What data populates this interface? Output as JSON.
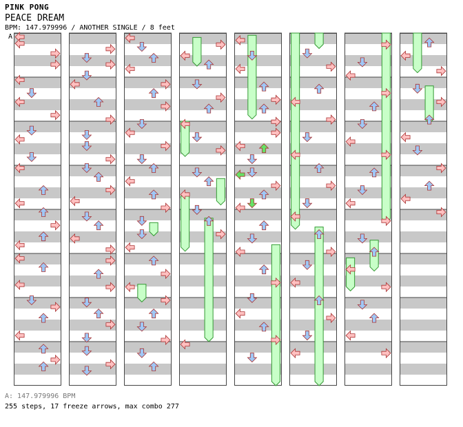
{
  "header": {
    "title": "PINK PONG",
    "song": "PEACE DREAM",
    "info": "BPM: 147.979996 / ANOTHER SINGLE / 8 feet",
    "section_marker": "A"
  },
  "footer": {
    "bpm_line": "A: 147.979996 BPM",
    "stats_line": "255 steps, 17 freeze arrows, max combo 277"
  },
  "colors": {
    "stripe": "#c8c8c8",
    "column_border": "#444444",
    "left_right_arrow": "#ffc0c0",
    "down_up_arrow": "#9fc7f5",
    "note_green": "#66e066",
    "freeze": "#c8ffc8",
    "freeze_border": "#339933"
  },
  "chart": {
    "columns": 8,
    "measures_per_column": 8,
    "notes": [
      [
        0,
        0.05,
        "L"
      ],
      [
        0,
        0.35,
        "L"
      ],
      [
        0,
        0.8,
        "R"
      ],
      [
        0,
        1.3,
        "R"
      ],
      [
        0,
        2.0,
        "L"
      ],
      [
        0,
        2.6,
        "D"
      ],
      [
        0,
        3.0,
        "L"
      ],
      [
        0,
        3.6,
        "R"
      ],
      [
        0,
        4.3,
        "D"
      ],
      [
        0,
        4.7,
        "L"
      ],
      [
        0,
        5.5,
        "D"
      ],
      [
        0,
        6.0,
        "L"
      ],
      [
        0,
        7.0,
        "U"
      ],
      [
        0,
        7.6,
        "L"
      ],
      [
        0,
        8.0,
        "U"
      ],
      [
        0,
        8.6,
        "R"
      ],
      [
        0,
        9.1,
        "U"
      ],
      [
        0,
        9.5,
        "L"
      ],
      [
        0,
        10.1,
        "L"
      ],
      [
        0,
        10.5,
        "U"
      ],
      [
        0,
        11.3,
        "L"
      ],
      [
        0,
        12.0,
        "D"
      ],
      [
        0,
        12.3,
        "R"
      ],
      [
        0,
        12.8,
        "U"
      ],
      [
        0,
        13.6,
        "L"
      ],
      [
        0,
        14.2,
        "U"
      ],
      [
        0,
        14.7,
        "R"
      ],
      [
        0,
        15.0,
        "U"
      ],
      [
        1,
        0.6,
        "R"
      ],
      [
        1,
        1.0,
        "D"
      ],
      [
        1,
        1.3,
        "R"
      ],
      [
        1,
        1.8,
        "D"
      ],
      [
        1,
        2.2,
        "L"
      ],
      [
        1,
        3.0,
        "U"
      ],
      [
        1,
        3.8,
        "R"
      ],
      [
        1,
        4.5,
        "D"
      ],
      [
        1,
        5.0,
        "D"
      ],
      [
        1,
        5.6,
        "R"
      ],
      [
        1,
        6.0,
        "D"
      ],
      [
        1,
        6.4,
        "U"
      ],
      [
        1,
        7.0,
        "R"
      ],
      [
        1,
        7.5,
        "L"
      ],
      [
        1,
        8.2,
        "D"
      ],
      [
        1,
        8.6,
        "U"
      ],
      [
        1,
        9.2,
        "L"
      ],
      [
        1,
        9.7,
        "R"
      ],
      [
        1,
        10.2,
        "R"
      ],
      [
        1,
        10.8,
        "U"
      ],
      [
        1,
        11.4,
        "R"
      ],
      [
        1,
        12.1,
        "D"
      ],
      [
        1,
        12.6,
        "U"
      ],
      [
        1,
        13.1,
        "R"
      ],
      [
        1,
        13.7,
        "D"
      ],
      [
        1,
        14.3,
        "D"
      ],
      [
        1,
        14.9,
        "R"
      ],
      [
        1,
        15.2,
        "D"
      ],
      [
        2,
        0.1,
        "L"
      ],
      [
        2,
        0.5,
        "D"
      ],
      [
        2,
        1.0,
        "U"
      ],
      [
        2,
        1.5,
        "L"
      ],
      [
        2,
        2.2,
        "R"
      ],
      [
        2,
        2.6,
        "U"
      ],
      [
        2,
        3.2,
        "R"
      ],
      [
        2,
        4.0,
        "D"
      ],
      [
        2,
        4.4,
        "L"
      ],
      [
        2,
        5.0,
        "R"
      ],
      [
        2,
        5.6,
        "D"
      ],
      [
        2,
        6.0,
        "U"
      ],
      [
        2,
        6.6,
        "L"
      ],
      [
        2,
        7.2,
        "U"
      ],
      [
        2,
        7.8,
        "R"
      ],
      [
        2,
        8.4,
        "D"
      ],
      [
        2,
        9.0,
        "D"
      ],
      [
        2,
        9.6,
        "L"
      ],
      [
        2,
        10.2,
        "U"
      ],
      [
        2,
        10.8,
        "R"
      ],
      [
        2,
        11.4,
        "L"
      ],
      [
        2,
        12.0,
        "R"
      ],
      [
        2,
        12.6,
        "U"
      ],
      [
        2,
        13.2,
        "D"
      ],
      [
        2,
        13.8,
        "R"
      ],
      [
        2,
        14.4,
        "D"
      ],
      [
        2,
        15.0,
        "U"
      ],
      [
        3,
        0.4,
        "R"
      ],
      [
        3,
        0.9,
        "L"
      ],
      [
        3,
        1.3,
        "U"
      ],
      [
        3,
        2.2,
        "D"
      ],
      [
        3,
        2.8,
        "R"
      ],
      [
        3,
        3.3,
        "U"
      ],
      [
        3,
        4.0,
        "L"
      ],
      [
        3,
        4.6,
        "D"
      ],
      [
        3,
        5.2,
        "R"
      ],
      [
        3,
        6.2,
        "D"
      ],
      [
        3,
        6.6,
        "U"
      ],
      [
        3,
        7.2,
        "L"
      ],
      [
        3,
        7.9,
        "D"
      ],
      [
        3,
        8.4,
        "U"
      ],
      [
        3,
        9.0,
        "R"
      ],
      [
        3,
        14.0,
        "L"
      ],
      [
        4,
        0.2,
        "L"
      ],
      [
        4,
        0.9,
        "D"
      ],
      [
        4,
        1.5,
        "L"
      ],
      [
        4,
        2.3,
        "U"
      ],
      [
        4,
        2.9,
        "R"
      ],
      [
        4,
        3.3,
        "U"
      ],
      [
        4,
        3.9,
        "R"
      ],
      [
        4,
        4.4,
        "R"
      ],
      [
        4,
        5.0,
        "L"
      ],
      [
        4,
        5.6,
        "D"
      ],
      [
        4,
        6.2,
        "D"
      ],
      [
        4,
        6.8,
        "R"
      ],
      [
        4,
        7.2,
        "U"
      ],
      [
        4,
        7.8,
        "L"
      ],
      [
        4,
        8.6,
        "U"
      ],
      [
        4,
        9.2,
        "D"
      ],
      [
        4,
        9.8,
        "L"
      ],
      [
        4,
        10.6,
        "U"
      ],
      [
        4,
        11.2,
        "R"
      ],
      [
        4,
        11.9,
        "D"
      ],
      [
        4,
        12.6,
        "L"
      ],
      [
        4,
        13.2,
        "U"
      ],
      [
        4,
        13.8,
        "R"
      ],
      [
        4,
        14.6,
        "D"
      ],
      [
        5,
        0.8,
        "D"
      ],
      [
        5,
        1.4,
        "R"
      ],
      [
        5,
        2.4,
        "U"
      ],
      [
        5,
        3.0,
        "L"
      ],
      [
        5,
        3.8,
        "R"
      ],
      [
        5,
        4.6,
        "D"
      ],
      [
        5,
        5.4,
        "L"
      ],
      [
        5,
        6.0,
        "U"
      ],
      [
        5,
        6.8,
        "R"
      ],
      [
        5,
        7.6,
        "D"
      ],
      [
        5,
        8.2,
        "L"
      ],
      [
        5,
        9.0,
        "U"
      ],
      [
        5,
        9.8,
        "R"
      ],
      [
        5,
        10.4,
        "D"
      ],
      [
        5,
        11.2,
        "L"
      ],
      [
        5,
        12.0,
        "U"
      ],
      [
        5,
        12.8,
        "R"
      ],
      [
        5,
        13.6,
        "D"
      ],
      [
        5,
        14.4,
        "L"
      ],
      [
        6,
        0.4,
        "R"
      ],
      [
        6,
        1.2,
        "D"
      ],
      [
        6,
        1.8,
        "L"
      ],
      [
        6,
        2.6,
        "R"
      ],
      [
        6,
        3.2,
        "U"
      ],
      [
        6,
        4.0,
        "D"
      ],
      [
        6,
        4.8,
        "L"
      ],
      [
        6,
        5.4,
        "R"
      ],
      [
        6,
        6.2,
        "U"
      ],
      [
        6,
        7.0,
        "D"
      ],
      [
        6,
        7.6,
        "L"
      ],
      [
        6,
        8.4,
        "R"
      ],
      [
        6,
        9.2,
        "D"
      ],
      [
        6,
        9.8,
        "U"
      ],
      [
        6,
        10.6,
        "L"
      ],
      [
        6,
        11.4,
        "R"
      ],
      [
        6,
        12.2,
        "D"
      ],
      [
        6,
        12.8,
        "U"
      ],
      [
        6,
        13.6,
        "L"
      ],
      [
        6,
        14.4,
        "R"
      ],
      [
        7,
        0.3,
        "U"
      ],
      [
        7,
        0.9,
        "L"
      ],
      [
        7,
        1.6,
        "R"
      ],
      [
        7,
        2.4,
        "D"
      ],
      [
        7,
        3.0,
        "R"
      ],
      [
        7,
        3.8,
        "U"
      ],
      [
        7,
        4.6,
        "L"
      ],
      [
        7,
        5.2,
        "D"
      ],
      [
        7,
        6.0,
        "R"
      ],
      [
        7,
        6.8,
        "U"
      ],
      [
        7,
        7.4,
        "L"
      ],
      [
        7,
        8.0,
        "R"
      ]
    ],
    "freezes": [
      [
        2,
        8.6,
        9.2,
        "U"
      ],
      [
        2,
        11.4,
        12.2,
        "D"
      ],
      [
        3,
        0.2,
        1.5,
        "D"
      ],
      [
        3,
        7.4,
        9.9,
        "L"
      ],
      [
        3,
        8.4,
        14.0,
        "U"
      ],
      [
        3,
        4.0,
        5.6,
        "L"
      ],
      [
        4,
        0.1,
        3.9,
        "D"
      ],
      [
        4,
        9.6,
        16.0,
        "R"
      ],
      [
        5,
        0.0,
        8.9,
        "L"
      ],
      [
        5,
        8.8,
        16.0,
        "U"
      ],
      [
        6,
        0.0,
        8.6,
        "R"
      ],
      [
        6,
        9.4,
        10.8,
        "U"
      ],
      [
        7,
        0.0,
        1.8,
        "D"
      ],
      [
        7,
        2.4,
        4.1,
        "U"
      ],
      [
        6,
        10.2,
        11.7,
        "L"
      ],
      [
        3,
        6.6,
        7.8,
        "R"
      ],
      [
        5,
        0.0,
        0.7,
        "U"
      ]
    ],
    "green_notes": [
      [
        4,
        5.1,
        "U"
      ],
      [
        4,
        6.3,
        "L"
      ],
      [
        4,
        7.6,
        "D"
      ]
    ]
  }
}
